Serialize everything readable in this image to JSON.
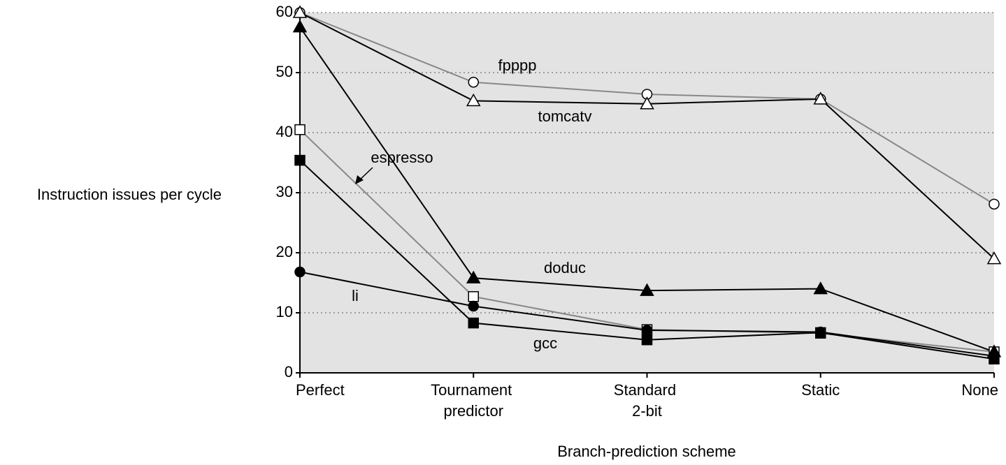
{
  "chart_data": {
    "type": "line",
    "xlabel": "Branch-prediction scheme",
    "ylabel": "Instruction issues per cycle",
    "categories": [
      "Perfect",
      "Tournament predictor",
      "Standard 2-bit",
      "Static",
      "None"
    ],
    "ylim": [
      0,
      60
    ],
    "yticks": [
      0,
      10,
      20,
      30,
      40,
      50,
      60
    ],
    "grid": true,
    "series": [
      {
        "name": "fpppp",
        "color": "#888888",
        "marker": "circle",
        "filled": false,
        "values": [
          60,
          48.4,
          46.4,
          45.6,
          28.1
        ]
      },
      {
        "name": "tomcatv",
        "color": "#000000",
        "marker": "triangle",
        "filled": false,
        "values": [
          60,
          45.3,
          44.8,
          45.6,
          19
        ]
      },
      {
        "name": "espresso",
        "color": "#888888",
        "marker": "square",
        "filled": false,
        "values": [
          40.5,
          12.7,
          7.2,
          6.6,
          3.5
        ]
      },
      {
        "name": "doduc",
        "color": "#000000",
        "marker": "triangle",
        "filled": true,
        "values": [
          57.6,
          15.8,
          13.7,
          14,
          3.5
        ]
      },
      {
        "name": "li",
        "color": "#000000",
        "marker": "circle",
        "filled": true,
        "values": [
          16.8,
          11.1,
          7.1,
          6.8,
          2.8
        ]
      },
      {
        "name": "gcc",
        "color": "#000000",
        "marker": "square",
        "filled": true,
        "values": [
          35.4,
          8.3,
          5.5,
          6.7,
          2.3
        ]
      }
    ]
  }
}
